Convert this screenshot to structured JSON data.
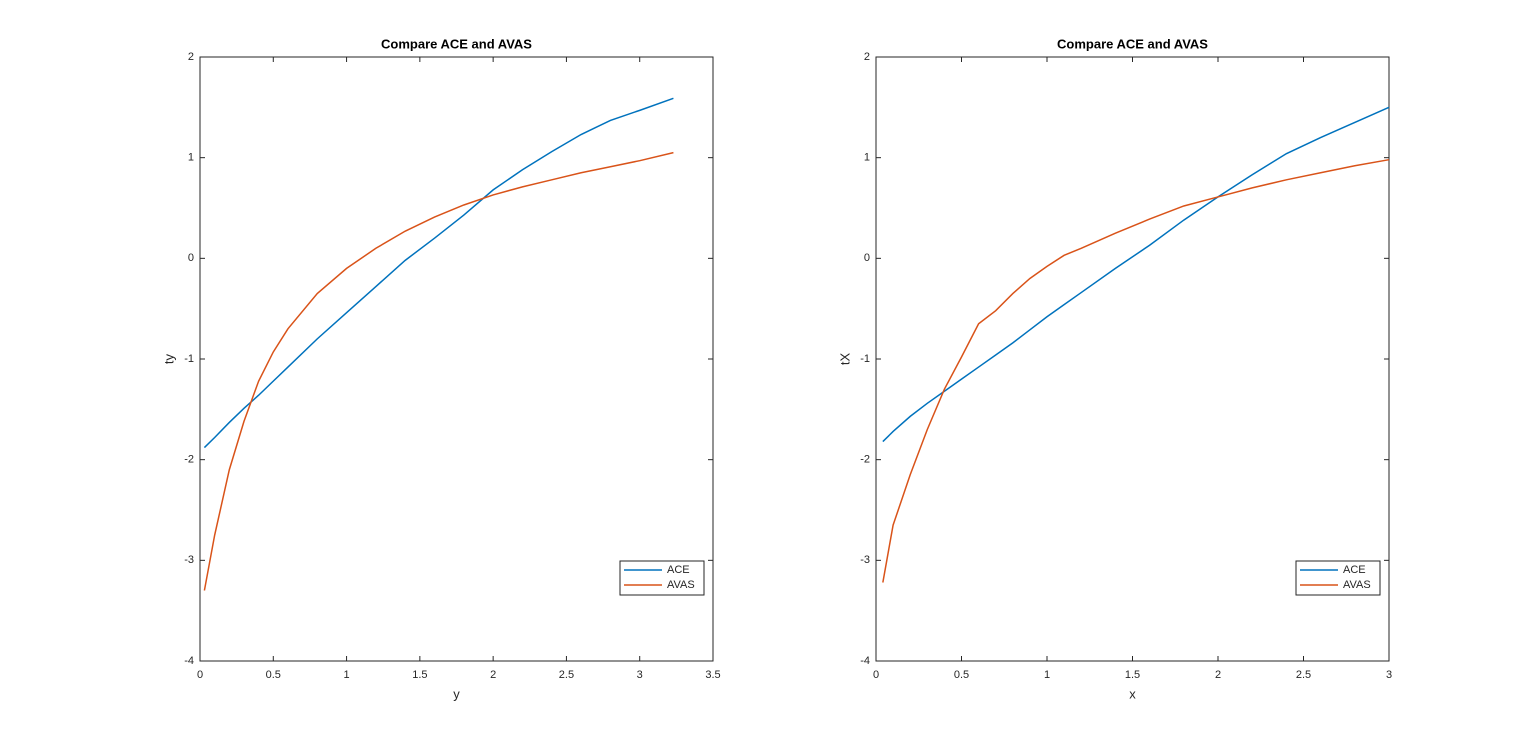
{
  "chart_data": [
    {
      "type": "line",
      "title": "Compare ACE and AVAS",
      "x_label": "y",
      "y_label": "ty",
      "x": [
        0.03,
        0.1,
        0.2,
        0.3,
        0.4,
        0.5,
        0.6,
        0.8,
        1.0,
        1.2,
        1.4,
        1.6,
        1.8,
        2.0,
        2.2,
        2.4,
        2.6,
        2.8,
        3.0,
        3.23
      ],
      "series": [
        {
          "name": "ACE",
          "color": "#0072bd",
          "values": [
            -1.88,
            -1.78,
            -1.63,
            -1.49,
            -1.36,
            -1.22,
            -1.08,
            -0.8,
            -0.54,
            -0.28,
            -0.02,
            0.2,
            0.43,
            0.68,
            0.88,
            1.06,
            1.23,
            1.37,
            1.47,
            1.59
          ]
        },
        {
          "name": "AVAS",
          "color": "#d95319",
          "values": [
            -3.3,
            -2.75,
            -2.1,
            -1.62,
            -1.22,
            -0.93,
            -0.7,
            -0.35,
            -0.1,
            0.1,
            0.27,
            0.41,
            0.53,
            0.63,
            0.71,
            0.78,
            0.85,
            0.91,
            0.97,
            1.05
          ]
        }
      ],
      "xlim": [
        0,
        3.5
      ],
      "xticks": [
        0,
        0.5,
        1,
        1.5,
        2,
        2.5,
        3,
        3.5
      ],
      "ylim": [
        -4,
        2
      ],
      "yticks": [
        -4,
        -3,
        -2,
        -1,
        0,
        1,
        2
      ],
      "grid": false,
      "legend": "lower right"
    },
    {
      "type": "line",
      "title": "Compare ACE and AVAS",
      "x_label": "x",
      "y_label": "tX",
      "x": [
        0.04,
        0.1,
        0.2,
        0.3,
        0.4,
        0.5,
        0.6,
        0.7,
        0.8,
        0.9,
        1.0,
        1.1,
        1.2,
        1.4,
        1.6,
        1.8,
        2.0,
        2.2,
        2.4,
        2.6,
        2.8,
        3.0
      ],
      "series": [
        {
          "name": "ACE",
          "color": "#0072bd",
          "values": [
            -1.82,
            -1.72,
            -1.57,
            -1.44,
            -1.32,
            -1.2,
            -1.08,
            -0.96,
            -0.84,
            -0.71,
            -0.58,
            -0.46,
            -0.34,
            -0.1,
            0.13,
            0.38,
            0.61,
            0.83,
            1.04,
            1.2,
            1.35,
            1.5
          ]
        },
        {
          "name": "AVAS",
          "color": "#d95319",
          "values": [
            -3.22,
            -2.65,
            -2.15,
            -1.7,
            -1.3,
            -0.98,
            -0.65,
            -0.52,
            -0.35,
            -0.2,
            -0.08,
            0.03,
            0.1,
            0.25,
            0.39,
            0.52,
            0.61,
            0.7,
            0.78,
            0.85,
            0.92,
            0.98
          ]
        }
      ],
      "xlim": [
        0,
        3
      ],
      "xticks": [
        0,
        0.5,
        1,
        1.5,
        2,
        2.5,
        3
      ],
      "ylim": [
        -4,
        2
      ],
      "yticks": [
        -4,
        -3,
        -2,
        -1,
        0,
        1,
        2
      ],
      "grid": false,
      "legend": "lower right"
    }
  ]
}
